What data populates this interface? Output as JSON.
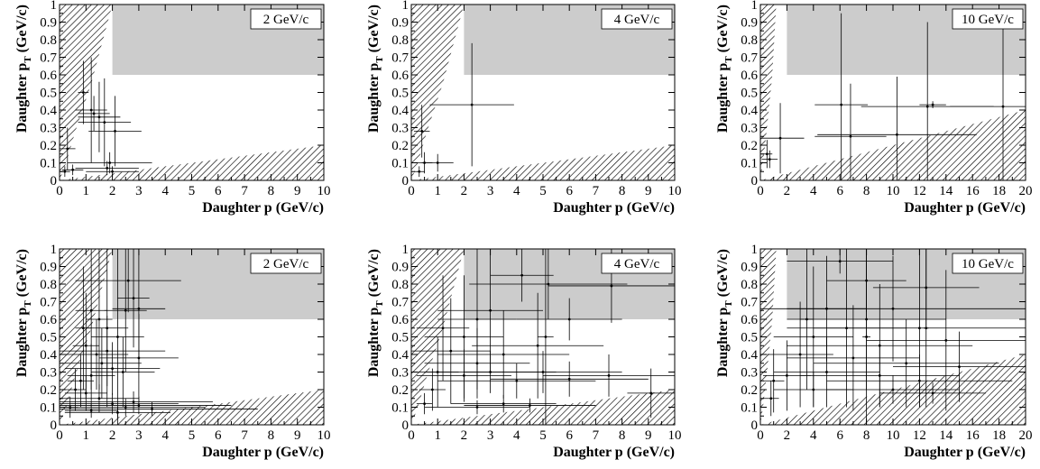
{
  "chart_data": [
    {
      "type": "scatter",
      "id": "row1-col1",
      "label": "2 GeV/c",
      "xlabel": "Daughter p (GeV/c)",
      "ylabel": "Daughter p_T (GeV/c)",
      "xlim": [
        0,
        10
      ],
      "ylim": [
        0,
        1
      ],
      "xticks": [
        "0",
        "1",
        "2",
        "3",
        "4",
        "5",
        "6",
        "7",
        "8",
        "9",
        "10"
      ],
      "yticks": [
        "0",
        "0.1",
        "0.2",
        "0.3",
        "0.4",
        "0.5",
        "0.6",
        "0.7",
        "0.8",
        "0.9",
        "1"
      ],
      "shaded_region": {
        "x": [
          2.0,
          10
        ],
        "y": [
          0.6,
          1.0
        ]
      },
      "hatch_upper": [
        [
          0,
          1.0
        ],
        [
          2.0,
          1.0
        ],
        [
          1.2,
          0.55
        ],
        [
          0.6,
          0.28
        ],
        [
          0.25,
          0.1
        ],
        [
          0,
          0
        ]
      ],
      "hatch_lower": [
        [
          0,
          0
        ],
        [
          10,
          0
        ],
        [
          10,
          0.2
        ]
      ],
      "points": [
        {
          "x": 0.3,
          "y": 0.18,
          "xerr": 0.3,
          "yerr": 0.12
        },
        {
          "x": 0.2,
          "y": 0.05,
          "xerr": 0.2,
          "yerr": 0.03
        },
        {
          "x": 0.5,
          "y": 0.06,
          "xerr": 0.4,
          "yerr": 0.03
        },
        {
          "x": 0.9,
          "y": 0.5,
          "xerr": 0.2,
          "yerr": 0.18
        },
        {
          "x": 1.2,
          "y": 0.4,
          "xerr": 0.6,
          "yerr": 0.3
        },
        {
          "x": 1.3,
          "y": 0.38,
          "xerr": 0.6,
          "yerr": 0.1
        },
        {
          "x": 1.5,
          "y": 0.36,
          "xerr": 0.8,
          "yerr": 0.2
        },
        {
          "x": 1.7,
          "y": 0.33,
          "xerr": 1.0,
          "yerr": 0.25
        },
        {
          "x": 2.1,
          "y": 0.28,
          "xerr": 1.0,
          "yerr": 0.2
        },
        {
          "x": 1.9,
          "y": 0.1,
          "xerr": 1.6,
          "yerr": 0.06
        },
        {
          "x": 1.8,
          "y": 0.07,
          "xerr": 1.2,
          "yerr": 0.04
        },
        {
          "x": 2.0,
          "y": 0.05,
          "xerr": 1.0,
          "yerr": 0.03
        }
      ]
    },
    {
      "type": "scatter",
      "id": "row1-col2",
      "label": "4 GeV/c",
      "xlabel": "Daughter p (GeV/c)",
      "ylabel": "Daughter p_T (GeV/c)",
      "xlim": [
        0,
        10
      ],
      "ylim": [
        0,
        1
      ],
      "xticks": [
        "0",
        "1",
        "2",
        "3",
        "4",
        "5",
        "6",
        "7",
        "8",
        "9",
        "10"
      ],
      "yticks": [
        "0",
        "0.1",
        "0.2",
        "0.3",
        "0.4",
        "0.5",
        "0.6",
        "0.7",
        "0.8",
        "0.9",
        "1"
      ],
      "shaded_region": {
        "x": [
          2.0,
          10
        ],
        "y": [
          0.6,
          1.0
        ]
      },
      "hatch_upper": [
        [
          0,
          1.0
        ],
        [
          2.0,
          1.0
        ],
        [
          1.2,
          0.55
        ],
        [
          0.6,
          0.28
        ],
        [
          0.25,
          0.1
        ],
        [
          0,
          0
        ]
      ],
      "hatch_lower": [
        [
          0,
          0
        ],
        [
          10,
          0
        ],
        [
          10,
          0.2
        ]
      ],
      "points": [
        {
          "x": 0.4,
          "y": 0.28,
          "xerr": 0.3,
          "yerr": 0.15
        },
        {
          "x": 0.5,
          "y": 0.1,
          "xerr": 0.3,
          "yerr": 0.06
        },
        {
          "x": 0.3,
          "y": 0.05,
          "xerr": 0.2,
          "yerr": 0.03
        },
        {
          "x": 1.0,
          "y": 0.1,
          "xerr": 0.6,
          "yerr": 0.05
        },
        {
          "x": 2.3,
          "y": 0.43,
          "xerr": 1.6,
          "yerr": 0.35
        }
      ]
    },
    {
      "type": "scatter",
      "id": "row1-col3",
      "label": "10 GeV/c",
      "xlabel": "Daughter p (GeV/c)",
      "ylabel": "Daughter p_T (GeV/c)",
      "xlim": [
        0,
        20
      ],
      "ylim": [
        0,
        1
      ],
      "xticks": [
        "0",
        "2",
        "4",
        "6",
        "8",
        "10",
        "12",
        "14",
        "16",
        "18",
        "20"
      ],
      "yticks": [
        "0",
        "0.1",
        "0.2",
        "0.3",
        "0.4",
        "0.5",
        "0.6",
        "0.7",
        "0.8",
        "0.9",
        "1"
      ],
      "shaded_region": {
        "x": [
          2.0,
          20
        ],
        "y": [
          0.6,
          1.0
        ]
      },
      "hatch_upper": [
        [
          0,
          1.0
        ],
        [
          1.2,
          1.0
        ],
        [
          0.9,
          0.6
        ],
        [
          0.5,
          0.3
        ],
        [
          0.2,
          0.1
        ],
        [
          0,
          0
        ]
      ],
      "hatch_lower": [
        [
          0,
          0
        ],
        [
          20,
          0
        ],
        [
          20,
          0.4
        ]
      ],
      "points": [
        {
          "x": 0.5,
          "y": 0.15,
          "xerr": 0.4,
          "yerr": 0.08
        },
        {
          "x": 0.7,
          "y": 0.12,
          "xerr": 0.6,
          "yerr": 0.05
        },
        {
          "x": 1.5,
          "y": 0.24,
          "xerr": 1.8,
          "yerr": 0.2
        },
        {
          "x": 6.1,
          "y": 0.43,
          "xerr": 2.0,
          "yerr": 0.52
        },
        {
          "x": 6.8,
          "y": 0.25,
          "xerr": 2.7,
          "yerr": 0.3
        },
        {
          "x": 10.3,
          "y": 0.26,
          "xerr": 6.0,
          "yerr": 0.33
        },
        {
          "x": 12.6,
          "y": 0.42,
          "xerr": 5.0,
          "yerr": 0.48
        },
        {
          "x": 18.3,
          "y": 0.42,
          "xerr": 4.0,
          "yerr": 0.45
        },
        {
          "x": 13.0,
          "y": 0.43,
          "xerr": 1.0,
          "yerr": 0.02
        }
      ]
    },
    {
      "type": "scatter",
      "id": "row2-col1",
      "label": "2 GeV/c",
      "xlabel": "Daughter p (GeV/c)",
      "ylabel": "Daughter p_T (GeV/c)",
      "xlim": [
        0,
        10
      ],
      "ylim": [
        0,
        1
      ],
      "xticks": [
        "0",
        "1",
        "2",
        "3",
        "4",
        "5",
        "6",
        "7",
        "8",
        "9",
        "10"
      ],
      "yticks": [
        "0",
        "0.1",
        "0.2",
        "0.3",
        "0.4",
        "0.5",
        "0.6",
        "0.7",
        "0.8",
        "0.9",
        "1"
      ],
      "shaded_region": {
        "x": [
          2.0,
          10
        ],
        "y": [
          0.6,
          1.0
        ]
      },
      "hatch_upper": [
        [
          0,
          1.0
        ],
        [
          2.0,
          1.0
        ],
        [
          1.2,
          0.55
        ],
        [
          0.6,
          0.28
        ],
        [
          0.25,
          0.1
        ],
        [
          0,
          0
        ]
      ],
      "hatch_lower": [
        [
          0,
          0
        ],
        [
          10,
          0
        ],
        [
          10,
          0.2
        ]
      ],
      "points": [
        {
          "x": 1.2,
          "y": 0.65,
          "xerr": 0.6,
          "yerr": 0.45
        },
        {
          "x": 1.5,
          "y": 0.6,
          "xerr": 0.5,
          "yerr": 0.4
        },
        {
          "x": 1.8,
          "y": 0.55,
          "xerr": 0.8,
          "yerr": 0.45
        },
        {
          "x": 2.2,
          "y": 0.5,
          "xerr": 1.0,
          "yerr": 0.5
        },
        {
          "x": 2.5,
          "y": 0.65,
          "xerr": 0.8,
          "yerr": 0.35
        },
        {
          "x": 3.0,
          "y": 0.66,
          "xerr": 1.0,
          "yerr": 0.33
        },
        {
          "x": 2.6,
          "y": 0.82,
          "xerr": 2.0,
          "yerr": 0.18
        },
        {
          "x": 1.0,
          "y": 0.45,
          "xerr": 0.5,
          "yerr": 0.3
        },
        {
          "x": 1.4,
          "y": 0.4,
          "xerr": 1.2,
          "yerr": 0.2
        },
        {
          "x": 1.6,
          "y": 0.35,
          "xerr": 1.5,
          "yerr": 0.2
        },
        {
          "x": 2.0,
          "y": 0.32,
          "xerr": 1.8,
          "yerr": 0.15
        },
        {
          "x": 1.2,
          "y": 0.28,
          "xerr": 0.9,
          "yerr": 0.18
        },
        {
          "x": 0.8,
          "y": 0.25,
          "xerr": 0.5,
          "yerr": 0.15
        },
        {
          "x": 2.4,
          "y": 0.3,
          "xerr": 1.2,
          "yerr": 0.2
        },
        {
          "x": 3.0,
          "y": 0.38,
          "xerr": 1.5,
          "yerr": 0.25
        },
        {
          "x": 1.8,
          "y": 0.42,
          "xerr": 2.2,
          "yerr": 0.2
        },
        {
          "x": 0.6,
          "y": 0.2,
          "xerr": 0.4,
          "yerr": 0.12
        },
        {
          "x": 1.0,
          "y": 0.18,
          "xerr": 0.8,
          "yerr": 0.1
        },
        {
          "x": 1.5,
          "y": 0.15,
          "xerr": 1.5,
          "yerr": 0.08
        },
        {
          "x": 2.0,
          "y": 0.12,
          "xerr": 2.5,
          "yerr": 0.06
        },
        {
          "x": 2.5,
          "y": 0.1,
          "xerr": 3.0,
          "yerr": 0.05
        },
        {
          "x": 3.0,
          "y": 0.11,
          "xerr": 3.5,
          "yerr": 0.05
        },
        {
          "x": 3.5,
          "y": 0.09,
          "xerr": 4.0,
          "yerr": 0.04
        },
        {
          "x": 2.8,
          "y": 0.13,
          "xerr": 3.0,
          "yerr": 0.06
        },
        {
          "x": 1.2,
          "y": 0.08,
          "xerr": 1.0,
          "yerr": 0.04
        },
        {
          "x": 2.2,
          "y": 0.07,
          "xerr": 2.0,
          "yerr": 0.03
        },
        {
          "x": 0.4,
          "y": 0.1,
          "xerr": 0.3,
          "yerr": 0.06
        },
        {
          "x": 0.9,
          "y": 0.55,
          "xerr": 0.3,
          "yerr": 0.35
        },
        {
          "x": 2.8,
          "y": 0.72,
          "xerr": 0.6,
          "yerr": 0.28
        }
      ]
    },
    {
      "type": "scatter",
      "id": "row2-col2",
      "label": "4 GeV/c",
      "xlabel": "Daughter p (GeV/c)",
      "ylabel": "Daughter p_T (GeV/c)",
      "xlim": [
        0,
        10
      ],
      "ylim": [
        0,
        1
      ],
      "xticks": [
        "0",
        "1",
        "2",
        "3",
        "4",
        "5",
        "6",
        "7",
        "8",
        "9",
        "10"
      ],
      "yticks": [
        "0",
        "0.1",
        "0.2",
        "0.3",
        "0.4",
        "0.5",
        "0.6",
        "0.7",
        "0.8",
        "0.9",
        "1"
      ],
      "shaded_region": {
        "x": [
          2.0,
          10
        ],
        "y": [
          0.6,
          1.0
        ]
      },
      "hatch_upper": [
        [
          0,
          1.0
        ],
        [
          2.0,
          1.0
        ],
        [
          1.2,
          0.55
        ],
        [
          0.6,
          0.28
        ],
        [
          0.25,
          0.1
        ],
        [
          0,
          0
        ]
      ],
      "hatch_lower": [
        [
          0,
          0
        ],
        [
          10,
          0
        ],
        [
          10,
          0.2
        ]
      ],
      "points": [
        {
          "x": 2.5,
          "y": 0.6,
          "xerr": 1.5,
          "yerr": 0.4
        },
        {
          "x": 3.0,
          "y": 0.65,
          "xerr": 2.0,
          "yerr": 0.35
        },
        {
          "x": 4.2,
          "y": 0.85,
          "xerr": 1.2,
          "yerr": 0.15
        },
        {
          "x": 5.2,
          "y": 0.8,
          "xerr": 3.0,
          "yerr": 0.2
        },
        {
          "x": 7.6,
          "y": 0.79,
          "xerr": 2.4,
          "yerr": 0.21
        },
        {
          "x": 6.0,
          "y": 0.6,
          "xerr": 2.0,
          "yerr": 0.12
        },
        {
          "x": 4.8,
          "y": 0.45,
          "xerr": 2.5,
          "yerr": 0.3
        },
        {
          "x": 3.5,
          "y": 0.4,
          "xerr": 2.5,
          "yerr": 0.25
        },
        {
          "x": 2.5,
          "y": 0.35,
          "xerr": 2.0,
          "yerr": 0.2
        },
        {
          "x": 1.5,
          "y": 0.42,
          "xerr": 1.5,
          "yerr": 0.3
        },
        {
          "x": 1.0,
          "y": 0.3,
          "xerr": 0.8,
          "yerr": 0.2
        },
        {
          "x": 2.0,
          "y": 0.28,
          "xerr": 1.8,
          "yerr": 0.15
        },
        {
          "x": 3.0,
          "y": 0.3,
          "xerr": 2.5,
          "yerr": 0.12
        },
        {
          "x": 4.0,
          "y": 0.25,
          "xerr": 3.0,
          "yerr": 0.1
        },
        {
          "x": 5.0,
          "y": 0.3,
          "xerr": 3.0,
          "yerr": 0.12
        },
        {
          "x": 6.0,
          "y": 0.26,
          "xerr": 3.0,
          "yerr": 0.1
        },
        {
          "x": 7.5,
          "y": 0.28,
          "xerr": 2.5,
          "yerr": 0.12
        },
        {
          "x": 9.1,
          "y": 0.18,
          "xerr": 0.9,
          "yerr": 0.14
        },
        {
          "x": 3.5,
          "y": 0.12,
          "xerr": 2.0,
          "yerr": 0.05
        },
        {
          "x": 4.5,
          "y": 0.11,
          "xerr": 2.5,
          "yerr": 0.04
        },
        {
          "x": 2.5,
          "y": 0.1,
          "xerr": 2.0,
          "yerr": 0.04
        },
        {
          "x": 0.8,
          "y": 0.2,
          "xerr": 0.5,
          "yerr": 0.12
        },
        {
          "x": 0.5,
          "y": 0.12,
          "xerr": 0.3,
          "yerr": 0.06
        },
        {
          "x": 1.2,
          "y": 0.55,
          "xerr": 1.0,
          "yerr": 0.3
        },
        {
          "x": 2.0,
          "y": 0.5,
          "xerr": 1.5,
          "yerr": 0.35
        },
        {
          "x": 5.1,
          "y": 0.5,
          "xerr": 0.3,
          "yerr": 0.5
        }
      ]
    },
    {
      "type": "scatter",
      "id": "row2-col3",
      "label": "10 GeV/c",
      "xlabel": "Daughter p (GeV/c)",
      "ylabel": "Daughter p_T (GeV/c)",
      "xlim": [
        0,
        20
      ],
      "ylim": [
        0,
        1
      ],
      "xticks": [
        "0",
        "2",
        "4",
        "6",
        "8",
        "10",
        "12",
        "14",
        "16",
        "18",
        "20"
      ],
      "yticks": [
        "0",
        "0.1",
        "0.2",
        "0.3",
        "0.4",
        "0.5",
        "0.6",
        "0.7",
        "0.8",
        "0.9",
        "1"
      ],
      "shaded_region": {
        "x": [
          2.0,
          20
        ],
        "y": [
          0.6,
          1.0
        ]
      },
      "hatch_upper": [
        [
          0,
          1.0
        ],
        [
          1.2,
          1.0
        ],
        [
          0.9,
          0.6
        ],
        [
          0.5,
          0.3
        ],
        [
          0.2,
          0.1
        ],
        [
          0,
          0
        ]
      ],
      "hatch_lower": [
        [
          0,
          0
        ],
        [
          20,
          0
        ],
        [
          20,
          0.4
        ]
      ],
      "points": [
        {
          "x": 6.0,
          "y": 0.93,
          "xerr": 4.0,
          "yerr": 0.07
        },
        {
          "x": 8.0,
          "y": 0.82,
          "xerr": 3.0,
          "yerr": 0.18
        },
        {
          "x": 12.5,
          "y": 0.78,
          "xerr": 4.0,
          "yerr": 0.22
        },
        {
          "x": 5.0,
          "y": 0.66,
          "xerr": 3.0,
          "yerr": 0.3
        },
        {
          "x": 10.0,
          "y": 0.66,
          "xerr": 10.0,
          "yerr": 0.3
        },
        {
          "x": 8.0,
          "y": 0.6,
          "xerr": 6.0,
          "yerr": 0.4
        },
        {
          "x": 6.5,
          "y": 0.55,
          "xerr": 4.5,
          "yerr": 0.45
        },
        {
          "x": 12.0,
          "y": 0.55,
          "xerr": 8.0,
          "yerr": 0.45
        },
        {
          "x": 4.0,
          "y": 0.5,
          "xerr": 3.0,
          "yerr": 0.4
        },
        {
          "x": 9.0,
          "y": 0.45,
          "xerr": 7.0,
          "yerr": 0.35
        },
        {
          "x": 14.0,
          "y": 0.48,
          "xerr": 6.0,
          "yerr": 0.4
        },
        {
          "x": 3.0,
          "y": 0.4,
          "xerr": 2.5,
          "yerr": 0.3
        },
        {
          "x": 7.0,
          "y": 0.38,
          "xerr": 5.0,
          "yerr": 0.3
        },
        {
          "x": 11.0,
          "y": 0.35,
          "xerr": 7.0,
          "yerr": 0.25
        },
        {
          "x": 15.0,
          "y": 0.33,
          "xerr": 5.0,
          "yerr": 0.2
        },
        {
          "x": 5.0,
          "y": 0.3,
          "xerr": 4.0,
          "yerr": 0.2
        },
        {
          "x": 9.0,
          "y": 0.28,
          "xerr": 6.0,
          "yerr": 0.18
        },
        {
          "x": 12.0,
          "y": 0.25,
          "xerr": 7.0,
          "yerr": 0.15
        },
        {
          "x": 2.0,
          "y": 0.28,
          "xerr": 1.8,
          "yerr": 0.2
        },
        {
          "x": 1.0,
          "y": 0.25,
          "xerr": 0.8,
          "yerr": 0.18
        },
        {
          "x": 0.8,
          "y": 0.15,
          "xerr": 0.6,
          "yerr": 0.1
        },
        {
          "x": 4.0,
          "y": 0.2,
          "xerr": 3.0,
          "yerr": 0.1
        },
        {
          "x": 10.0,
          "y": 0.2,
          "xerr": 5.0,
          "yerr": 0.08
        },
        {
          "x": 13.0,
          "y": 0.18,
          "xerr": 4.0,
          "yerr": 0.06
        },
        {
          "x": 12.5,
          "y": 0.55,
          "xerr": 0.2,
          "yerr": 0.45
        },
        {
          "x": 8.0,
          "y": 0.5,
          "xerr": 0.3,
          "yerr": 0.5
        },
        {
          "x": 3.5,
          "y": 0.6,
          "xerr": 0.5,
          "yerr": 0.4
        }
      ]
    }
  ]
}
